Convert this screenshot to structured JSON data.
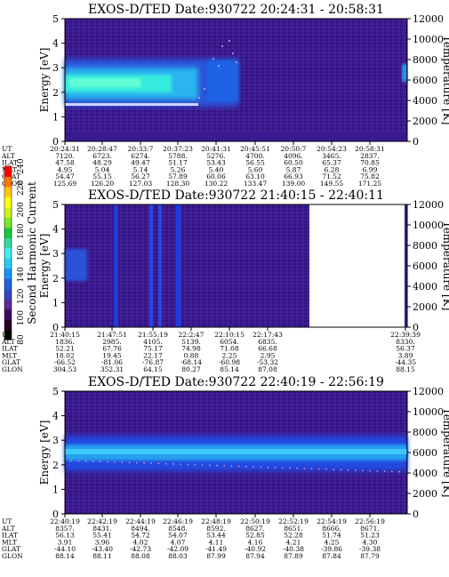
{
  "colorbar": {
    "label": "Second Harmonic Current",
    "ticks": [
      "80",
      "100",
      "120",
      "140",
      "160",
      "180",
      "200",
      "220",
      "240"
    ],
    "colors": [
      "#000000",
      "#280028",
      "#3c0a64",
      "#5a28a0",
      "#3246c8",
      "#1e64e6",
      "#1496ff",
      "#28c8ff",
      "#3cf0f0",
      "#32dca0",
      "#14c83c",
      "#78e628",
      "#d2f01e",
      "#ffff14",
      "#ffc80a",
      "#ff7800",
      "#ff0000"
    ]
  },
  "ephem_labels": [
    "UT",
    "ALT",
    "ILAT",
    "MLT",
    "GLAT",
    "GLON"
  ],
  "chart_data": [
    {
      "type": "heatmap",
      "title": "EXOS-D/TED   Date:930722  20:24:31 - 20:58:31",
      "ylabel": "Energy [eV]",
      "ylabel2": "Temperature [K]",
      "ylim": [
        0,
        5
      ],
      "ylim2": [
        0,
        12000
      ],
      "yticks": [
        "0",
        "1",
        "2",
        "3",
        "4",
        "5"
      ],
      "y2ticks": [
        "0",
        "2000",
        "4000",
        "6000",
        "8000",
        "10000",
        "12000"
      ],
      "ephemeris": [
        [
          "20:24:31",
          "7120.",
          "47.58",
          "4.95",
          "54.47",
          "125.69"
        ],
        [
          "20:28:47",
          "6723.",
          "48.29",
          "5.04",
          "55.15",
          "126.20"
        ],
        [
          "20:33:7",
          "6274.",
          "49.47",
          "5.14",
          "56.27",
          "127.03"
        ],
        [
          "20:37:23",
          "5788.",
          "51.17",
          "5.26",
          "57.89",
          "128.30"
        ],
        [
          "20:41:31",
          "5276.",
          "53.43",
          "5.40",
          "60.06",
          "130.22"
        ],
        [
          "20:45:51",
          "4700.",
          "56.55",
          "5.60",
          "63.10",
          "133.47"
        ],
        [
          "20:50:7",
          "4096.",
          "60.50",
          "5.87",
          "66.93",
          "139.00"
        ],
        [
          "20:54:23",
          "3465.",
          "65.37",
          "6.28",
          "71.52",
          "149.55"
        ],
        [
          "20:58:31",
          "2837.",
          "70.85",
          "6.99",
          "75.82",
          "171.25"
        ]
      ]
    },
    {
      "type": "heatmap",
      "title": "EXOS-D/TED   Date:930722  21:40:15 - 22:40:11",
      "ylabel": "Energy [eV]",
      "ylabel2": "Temperature [K]",
      "ylim": [
        0,
        5
      ],
      "ylim2": [
        0,
        12000
      ],
      "yticks": [
        "0",
        "1",
        "2",
        "3",
        "4",
        "5"
      ],
      "y2ticks": [
        "0",
        "2000",
        "4000",
        "6000",
        "8000",
        "10000",
        "12000"
      ],
      "ephemeris": [
        [
          "21:40:15",
          "1836.",
          "52.21",
          "18.02",
          "-66.52",
          "304.53"
        ],
        [
          "21:47:51",
          "2985.",
          "67.76",
          "19.45",
          "-81.06",
          "352.31"
        ],
        [
          "21:55:19",
          "4105.",
          "75.17",
          "22.17",
          "-76.87",
          "64.15"
        ],
        [
          "22:2:47",
          "5139.",
          "74.98",
          "0.88",
          "-68.14",
          "80.27"
        ],
        [
          "22:10:15",
          "6054.",
          "71.08",
          "2.25",
          "-60.98",
          "85.14"
        ],
        [
          "22:17:43",
          "6835.",
          "66.68",
          "2.95",
          "-53.32",
          "87.08"
        ],
        [
          "22:39:39",
          "8330.",
          "56.37",
          "3.89",
          "-44.35",
          "88.15"
        ]
      ]
    },
    {
      "type": "heatmap",
      "title": "EXOS-D/TED   Date:930722  22:40:19 - 22:56:19",
      "ylabel": "Energy [eV]",
      "ylabel2": "Temperature [K]",
      "ylim": [
        0,
        5
      ],
      "ylim2": [
        0,
        12000
      ],
      "yticks": [
        "0",
        "1",
        "2",
        "3",
        "4",
        "5"
      ],
      "y2ticks": [
        "0",
        "2000",
        "4000",
        "6000",
        "8000",
        "10000",
        "12000"
      ],
      "ephemeris": [
        [
          "22:40:19",
          "8357.",
          "56.13",
          "3.91",
          "-44.10",
          "88.14"
        ],
        [
          "22:42:19",
          "8431.",
          "55.41",
          "3.96",
          "-43.40",
          "88.11"
        ],
        [
          "22:44:19",
          "8494.",
          "54.72",
          "4.02",
          "-42.73",
          "88.08"
        ],
        [
          "22:46:19",
          "8548.",
          "54.07",
          "4.07",
          "-42.09",
          "88.03"
        ],
        [
          "22:48:19",
          "8592.",
          "53.44",
          "4.11",
          "-41.49",
          "87.99"
        ],
        [
          "22:50:19",
          "8627.",
          "52.85",
          "4.16",
          "-40.92",
          "87.94"
        ],
        [
          "22:52:19",
          "8651.",
          "52.28",
          "4.21",
          "-40.38",
          "87.89"
        ],
        [
          "22:54:19",
          "8666.",
          "51.74",
          "4.25",
          "-39.86",
          "87.84"
        ],
        [
          "22:56:19",
          "8671.",
          "51.23",
          "4.30",
          "-39.38",
          "87.79"
        ]
      ]
    }
  ]
}
